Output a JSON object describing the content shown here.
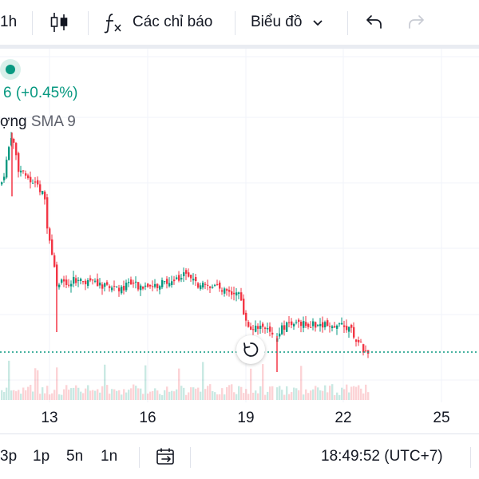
{
  "toolbar": {
    "interval_label": "1h",
    "candles_icon": "candles-icon",
    "indicators_icon": "function-fx-icon",
    "indicators_label": "Các chỉ báo",
    "chart_type_label": "Biểu đồ",
    "undo_icon": "undo-icon",
    "redo_icon": "redo-icon"
  },
  "legend": {
    "change_text": "6 (+0.45%)",
    "volume_name": "ợng",
    "sma_label": "SMA 9"
  },
  "bottom": {
    "ranges": [
      "3p",
      "1p",
      "5n",
      "1n"
    ],
    "date_range_icon": "calendar-goto-icon",
    "time": "18:49:52 (UTC+7)"
  },
  "colors": {
    "up": "#089981",
    "down": "#f23645",
    "grid": "#f0f3fa",
    "last_price_line": "#089981"
  },
  "chart_data": {
    "type": "candlestick",
    "x_tick_labels": [
      "13",
      "16",
      "19",
      "22",
      "25"
    ],
    "last_price_change_percent": 0.45,
    "grid": true,
    "series": []
  }
}
